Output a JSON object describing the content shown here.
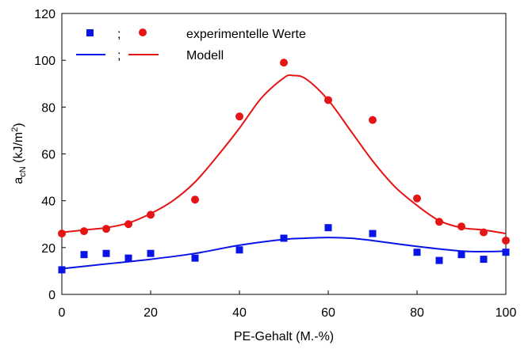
{
  "chart_data": {
    "type": "scatter",
    "xlabel": "PE-Gehalt (M.-%)",
    "ylabel_main": "a",
    "ylabel_sub": "cN",
    "ylabel_unit_pre": " (kJ/m",
    "ylabel_unit_sup": "2",
    "ylabel_unit_post": ")",
    "xlim": [
      0,
      100
    ],
    "ylim": [
      0,
      120
    ],
    "xticks": [
      0,
      20,
      40,
      60,
      80,
      100
    ],
    "yticks": [
      0,
      20,
      40,
      60,
      80,
      100,
      120
    ],
    "grid": false,
    "legend_placement": "top-left",
    "legend": {
      "separator": ";",
      "markers_label": "experimentelle Werte",
      "lines_label": "Modell"
    },
    "series": [
      {
        "kind": "markers",
        "marker": "square",
        "color": "#0a14e6",
        "points": [
          [
            0,
            10.5
          ],
          [
            5,
            17
          ],
          [
            10,
            17.5
          ],
          [
            15,
            15.5
          ],
          [
            20,
            17.5
          ],
          [
            30,
            15.5
          ],
          [
            40,
            19
          ],
          [
            50,
            24
          ],
          [
            60,
            28.5
          ],
          [
            70,
            26
          ],
          [
            80,
            18
          ],
          [
            85,
            14.5
          ],
          [
            90,
            17
          ],
          [
            95,
            15
          ],
          [
            100,
            18
          ]
        ]
      },
      {
        "kind": "markers",
        "marker": "circle",
        "color": "#e61414",
        "points": [
          [
            0,
            26
          ],
          [
            5,
            27
          ],
          [
            10,
            28
          ],
          [
            15,
            30
          ],
          [
            20,
            34
          ],
          [
            30,
            40.5
          ],
          [
            40,
            76
          ],
          [
            50,
            99
          ],
          [
            60,
            83
          ],
          [
            70,
            74.5
          ],
          [
            80,
            41
          ],
          [
            85,
            31
          ],
          [
            90,
            29
          ],
          [
            95,
            26.5
          ],
          [
            100,
            23
          ]
        ]
      },
      {
        "kind": "line",
        "color": "#0a14e6",
        "points": [
          [
            0,
            11
          ],
          [
            10,
            13
          ],
          [
            20,
            15
          ],
          [
            30,
            17.5
          ],
          [
            40,
            21
          ],
          [
            50,
            23.5
          ],
          [
            55,
            24
          ],
          [
            60,
            24.3
          ],
          [
            65,
            24
          ],
          [
            70,
            23
          ],
          [
            80,
            20.5
          ],
          [
            90,
            18.5
          ],
          [
            95,
            18.3
          ],
          [
            100,
            18.5
          ]
        ]
      },
      {
        "kind": "line",
        "color": "#e61414",
        "points": [
          [
            0,
            26.5
          ],
          [
            5,
            27.5
          ],
          [
            10,
            28.5
          ],
          [
            15,
            30.5
          ],
          [
            20,
            34.5
          ],
          [
            25,
            40
          ],
          [
            30,
            48
          ],
          [
            35,
            59
          ],
          [
            40,
            71
          ],
          [
            45,
            84
          ],
          [
            50,
            92.5
          ],
          [
            52,
            93.5
          ],
          [
            55,
            92
          ],
          [
            60,
            83
          ],
          [
            65,
            70
          ],
          [
            70,
            57
          ],
          [
            75,
            46
          ],
          [
            80,
            38
          ],
          [
            85,
            31.5
          ],
          [
            90,
            28.5
          ],
          [
            95,
            27.5
          ],
          [
            100,
            26
          ]
        ]
      }
    ]
  }
}
